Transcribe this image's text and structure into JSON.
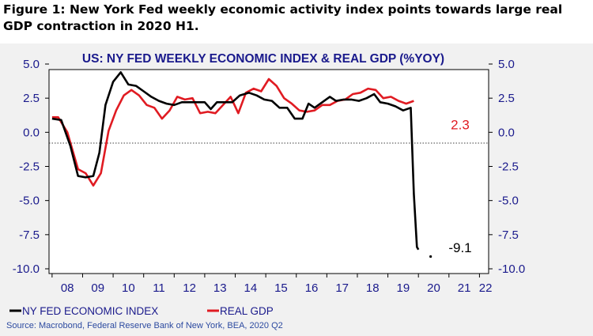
{
  "figure_title": "Figure 1: New York Fed weekly economic activity index points towards large real GDP contraction in 2020 H1.",
  "source": "Source: Macrobond, Federal Reserve Bank of New York, BEA, 2020 Q2",
  "colors": {
    "wei": "#000000",
    "gdp": "#e01b22",
    "title": "#1a1a8c",
    "axis_text": "#1a1a8c"
  },
  "chart_data": {
    "type": "line",
    "title": "US: NY FED WEEKLY ECONOMIC INDEX & REAL GDP (%YOY)",
    "ylim": [
      -10.0,
      5.0
    ],
    "yticks": [
      "5.0",
      "2.5",
      "0.0",
      "-2.5",
      "-5.0",
      "-7.5",
      "-10.0"
    ],
    "ytick_values": [
      5.0,
      2.5,
      0.0,
      -2.5,
      -5.0,
      -7.5,
      -10.0
    ],
    "xlim": [
      2007.9,
      2022.3
    ],
    "xticks": [
      "08",
      "09",
      "10",
      "11",
      "12",
      "13",
      "14",
      "15",
      "16",
      "17",
      "18",
      "19",
      "20",
      "21",
      "22"
    ],
    "xtick_values": [
      2008.5,
      2009.5,
      2010.5,
      2011.5,
      2012.5,
      2013.5,
      2014.5,
      2015.5,
      2016.5,
      2017.5,
      2018.5,
      2019.5,
      2020.5,
      2021.5,
      2022.2
    ],
    "zero_line": true,
    "legend": "bottom-left",
    "series": [
      {
        "name": "NY FED ECONOMIC INDEX",
        "color": "#000000",
        "points": [
          [
            2008.0,
            1.0
          ],
          [
            2008.3,
            0.9
          ],
          [
            2008.6,
            -1.0
          ],
          [
            2008.85,
            -3.2
          ],
          [
            2009.1,
            -3.3
          ],
          [
            2009.35,
            -3.2
          ],
          [
            2009.55,
            -1.5
          ],
          [
            2009.75,
            2.0
          ],
          [
            2010.0,
            3.7
          ],
          [
            2010.25,
            4.4
          ],
          [
            2010.5,
            3.5
          ],
          [
            2010.75,
            3.4
          ],
          [
            2011.0,
            3.0
          ],
          [
            2011.25,
            2.6
          ],
          [
            2011.5,
            2.3
          ],
          [
            2011.75,
            2.1
          ],
          [
            2012.0,
            2.0
          ],
          [
            2012.25,
            2.2
          ],
          [
            2012.5,
            2.2
          ],
          [
            2012.75,
            2.2
          ],
          [
            2013.0,
            2.2
          ],
          [
            2013.2,
            1.7
          ],
          [
            2013.4,
            2.2
          ],
          [
            2013.65,
            2.2
          ],
          [
            2013.9,
            2.2
          ],
          [
            2014.15,
            2.7
          ],
          [
            2014.45,
            2.9
          ],
          [
            2014.7,
            2.7
          ],
          [
            2014.95,
            2.4
          ],
          [
            2015.2,
            2.3
          ],
          [
            2015.45,
            1.8
          ],
          [
            2015.7,
            1.8
          ],
          [
            2015.95,
            1.0
          ],
          [
            2016.2,
            1.0
          ],
          [
            2016.4,
            2.1
          ],
          [
            2016.6,
            1.8
          ],
          [
            2016.85,
            2.2
          ],
          [
            2017.1,
            2.6
          ],
          [
            2017.3,
            2.3
          ],
          [
            2017.55,
            2.4
          ],
          [
            2017.8,
            2.4
          ],
          [
            2018.05,
            2.3
          ],
          [
            2018.3,
            2.5
          ],
          [
            2018.55,
            2.8
          ],
          [
            2018.75,
            2.2
          ],
          [
            2019.0,
            2.1
          ],
          [
            2019.25,
            1.9
          ],
          [
            2019.5,
            1.6
          ],
          [
            2019.75,
            1.8
          ],
          [
            2019.85,
            -4.5
          ],
          [
            2019.95,
            -8.4
          ],
          [
            2020.0,
            -8.6
          ]
        ],
        "dots": [
          [
            2020.4,
            -9.1
          ]
        ],
        "end_label": "-9.1"
      },
      {
        "name": "REAL GDP",
        "color": "#e01b22",
        "points": [
          [
            2008.0,
            1.1
          ],
          [
            2008.2,
            1.1
          ],
          [
            2008.5,
            0.0
          ],
          [
            2008.85,
            -2.7
          ],
          [
            2009.1,
            -3.0
          ],
          [
            2009.35,
            -3.9
          ],
          [
            2009.6,
            -3.0
          ],
          [
            2009.85,
            0.1
          ],
          [
            2010.1,
            1.6
          ],
          [
            2010.35,
            2.7
          ],
          [
            2010.6,
            3.1
          ],
          [
            2010.85,
            2.7
          ],
          [
            2011.1,
            2.0
          ],
          [
            2011.35,
            1.8
          ],
          [
            2011.6,
            1.0
          ],
          [
            2011.85,
            1.6
          ],
          [
            2012.1,
            2.6
          ],
          [
            2012.35,
            2.4
          ],
          [
            2012.6,
            2.5
          ],
          [
            2012.85,
            1.4
          ],
          [
            2013.1,
            1.5
          ],
          [
            2013.35,
            1.4
          ],
          [
            2013.6,
            2.0
          ],
          [
            2013.85,
            2.6
          ],
          [
            2014.1,
            1.4
          ],
          [
            2014.35,
            2.9
          ],
          [
            2014.6,
            3.2
          ],
          [
            2014.85,
            3.0
          ],
          [
            2015.1,
            3.9
          ],
          [
            2015.35,
            3.4
          ],
          [
            2015.6,
            2.5
          ],
          [
            2015.85,
            2.1
          ],
          [
            2016.1,
            1.6
          ],
          [
            2016.35,
            1.5
          ],
          [
            2016.6,
            1.6
          ],
          [
            2016.85,
            2.0
          ],
          [
            2017.1,
            2.0
          ],
          [
            2017.35,
            2.3
          ],
          [
            2017.6,
            2.4
          ],
          [
            2017.85,
            2.8
          ],
          [
            2018.1,
            2.9
          ],
          [
            2018.35,
            3.2
          ],
          [
            2018.6,
            3.1
          ],
          [
            2018.85,
            2.5
          ],
          [
            2019.1,
            2.6
          ],
          [
            2019.35,
            2.3
          ],
          [
            2019.6,
            2.1
          ],
          [
            2019.85,
            2.3
          ]
        ],
        "end_label": "2.3"
      }
    ]
  }
}
